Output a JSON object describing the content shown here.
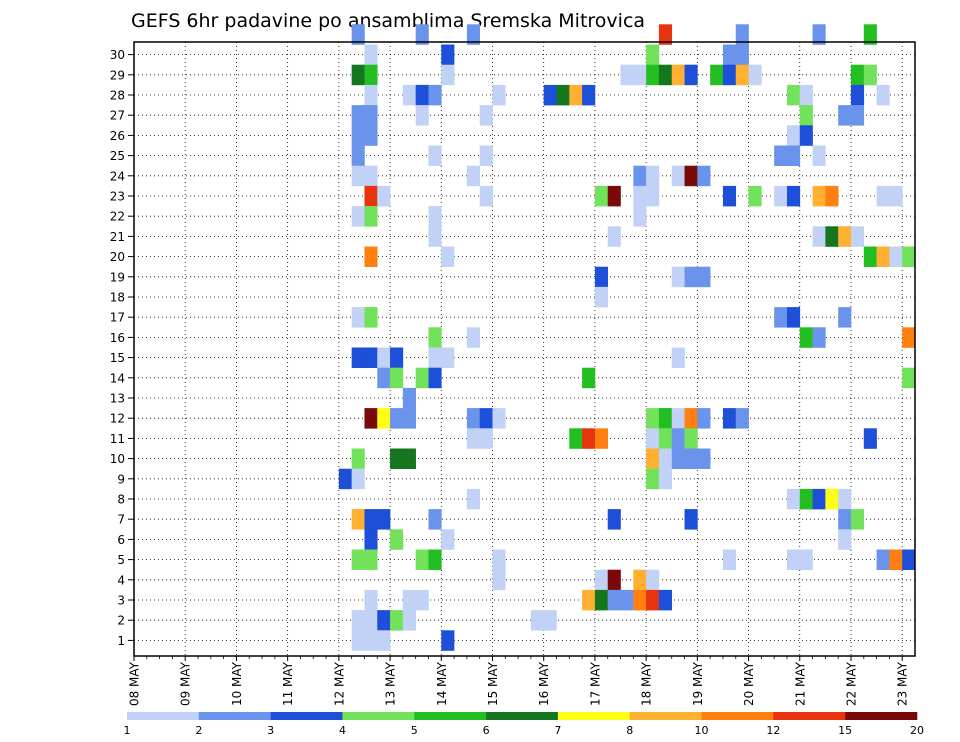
{
  "chart_data": {
    "type": "heatmap",
    "title": "GEFS 6hr padavine po ansamblima Sremska Mitrovica",
    "xlabel": "",
    "ylabel": "",
    "x_tick_labels": [
      "08 MAY",
      "09 MAY",
      "10 MAY",
      "11 MAY",
      "12 MAY",
      "13 MAY",
      "14 MAY",
      "15 MAY",
      "16 MAY",
      "17 MAY",
      "18 MAY",
      "19 MAY",
      "20 MAY",
      "21 MAY",
      "22 MAY",
      "23 MAY"
    ],
    "x_step_hours": 6,
    "x_slots": 61,
    "y_tick_labels": [
      "1",
      "2",
      "3",
      "4",
      "5",
      "6",
      "7",
      "8",
      "9",
      "10",
      "11",
      "12",
      "13",
      "14",
      "15",
      "16",
      "17",
      "18",
      "19",
      "20",
      "21",
      "22",
      "23",
      "24",
      "25",
      "26",
      "27",
      "28",
      "29",
      "30"
    ],
    "grid": true,
    "legend": {
      "position": "bottom",
      "colors": [
        "#c1d2f6",
        "#6a94ec",
        "#1d4fd8",
        "#72e25a",
        "#22be22",
        "#15761f",
        "#ffff14",
        "#ffb030",
        "#ff7f10",
        "#e8330f",
        "#7a0a0a"
      ],
      "labels": [
        "1",
        "2",
        "3",
        "4",
        "5",
        "6",
        "7",
        "8",
        "10",
        "12",
        "15",
        "20"
      ]
    },
    "cells": [
      [
        17,
        30,
        1
      ],
      [
        22,
        30,
        1
      ],
      [
        26,
        30,
        1
      ],
      [
        41,
        30,
        9
      ],
      [
        47,
        30,
        1
      ],
      [
        53,
        30,
        1
      ],
      [
        57,
        30,
        4
      ],
      [
        18,
        29,
        0
      ],
      [
        24,
        29,
        2
      ],
      [
        40,
        29,
        3
      ],
      [
        46,
        29,
        1
      ],
      [
        47,
        29,
        1
      ],
      [
        17,
        28,
        5
      ],
      [
        18,
        28,
        4
      ],
      [
        24,
        28,
        0
      ],
      [
        38,
        28,
        0
      ],
      [
        39,
        28,
        0
      ],
      [
        40,
        28,
        4
      ],
      [
        41,
        28,
        5
      ],
      [
        42,
        28,
        7
      ],
      [
        43,
        28,
        2
      ],
      [
        45,
        28,
        4
      ],
      [
        46,
        28,
        2
      ],
      [
        47,
        28,
        7
      ],
      [
        48,
        28,
        0
      ],
      [
        56,
        28,
        4
      ],
      [
        57,
        28,
        3
      ],
      [
        18,
        27,
        0
      ],
      [
        21,
        27,
        0
      ],
      [
        22,
        27,
        2
      ],
      [
        23,
        27,
        1
      ],
      [
        28,
        27,
        0
      ],
      [
        32,
        27,
        2
      ],
      [
        33,
        27,
        5
      ],
      [
        34,
        27,
        7
      ],
      [
        35,
        27,
        2
      ],
      [
        51,
        27,
        3
      ],
      [
        52,
        27,
        0
      ],
      [
        56,
        27,
        2
      ],
      [
        58,
        27,
        0
      ],
      [
        17,
        26,
        1
      ],
      [
        18,
        26,
        1
      ],
      [
        22,
        26,
        0
      ],
      [
        27,
        26,
        0
      ],
      [
        52,
        26,
        3
      ],
      [
        55,
        26,
        1
      ],
      [
        56,
        26,
        1
      ],
      [
        17,
        25,
        1
      ],
      [
        18,
        25,
        1
      ],
      [
        51,
        25,
        0
      ],
      [
        52,
        25,
        2
      ],
      [
        17,
        24,
        1
      ],
      [
        23,
        24,
        0
      ],
      [
        27,
        24,
        0
      ],
      [
        50,
        24,
        1
      ],
      [
        51,
        24,
        1
      ],
      [
        53,
        24,
        0
      ],
      [
        17,
        23,
        0
      ],
      [
        18,
        23,
        0
      ],
      [
        26,
        23,
        0
      ],
      [
        39,
        23,
        1
      ],
      [
        40,
        23,
        0
      ],
      [
        42,
        23,
        0
      ],
      [
        43,
        23,
        10
      ],
      [
        44,
        23,
        1
      ],
      [
        18,
        22,
        9
      ],
      [
        19,
        22,
        0
      ],
      [
        27,
        22,
        0
      ],
      [
        36,
        22,
        3
      ],
      [
        37,
        22,
        10
      ],
      [
        39,
        22,
        0
      ],
      [
        40,
        22,
        0
      ],
      [
        46,
        22,
        2
      ],
      [
        48,
        22,
        3
      ],
      [
        50,
        22,
        0
      ],
      [
        51,
        22,
        2
      ],
      [
        53,
        22,
        7
      ],
      [
        54,
        22,
        8
      ],
      [
        58,
        22,
        0
      ],
      [
        59,
        22,
        0
      ],
      [
        17,
        21,
        0
      ],
      [
        18,
        21,
        3
      ],
      [
        23,
        21,
        0
      ],
      [
        39,
        21,
        0
      ],
      [
        23,
        20,
        0
      ],
      [
        37,
        20,
        0
      ],
      [
        53,
        20,
        0
      ],
      [
        54,
        20,
        5
      ],
      [
        55,
        20,
        7
      ],
      [
        56,
        20,
        0
      ],
      [
        24,
        19,
        0
      ],
      [
        18,
        19,
        8
      ],
      [
        57,
        19,
        4
      ],
      [
        58,
        19,
        7
      ],
      [
        59,
        19,
        0
      ],
      [
        60,
        19,
        3
      ],
      [
        36,
        18,
        2
      ],
      [
        42,
        18,
        0
      ],
      [
        43,
        18,
        1
      ],
      [
        44,
        18,
        1
      ],
      [
        36,
        17,
        0
      ],
      [
        17,
        16,
        0
      ],
      [
        18,
        16,
        3
      ],
      [
        50,
        16,
        1
      ],
      [
        51,
        16,
        2
      ],
      [
        55,
        16,
        1
      ],
      [
        23,
        15,
        3
      ],
      [
        26,
        15,
        0
      ],
      [
        52,
        15,
        4
      ],
      [
        53,
        15,
        1
      ],
      [
        60,
        15,
        8
      ],
      [
        17,
        14,
        2
      ],
      [
        18,
        14,
        2
      ],
      [
        19,
        14,
        0
      ],
      [
        20,
        14,
        2
      ],
      [
        23,
        14,
        0
      ],
      [
        24,
        14,
        0
      ],
      [
        42,
        14,
        0
      ],
      [
        19,
        13,
        1
      ],
      [
        20,
        13,
        3
      ],
      [
        22,
        13,
        3
      ],
      [
        23,
        13,
        2
      ],
      [
        35,
        13,
        4
      ],
      [
        60,
        13,
        3
      ],
      [
        21,
        12,
        1
      ],
      [
        18,
        11,
        10
      ],
      [
        19,
        11,
        6
      ],
      [
        20,
        11,
        1
      ],
      [
        21,
        11,
        1
      ],
      [
        26,
        11,
        1
      ],
      [
        27,
        11,
        2
      ],
      [
        28,
        11,
        0
      ],
      [
        40,
        11,
        3
      ],
      [
        41,
        11,
        4
      ],
      [
        42,
        11,
        0
      ],
      [
        43,
        11,
        8
      ],
      [
        44,
        11,
        1
      ],
      [
        46,
        11,
        2
      ],
      [
        47,
        11,
        1
      ],
      [
        26,
        10,
        0
      ],
      [
        27,
        10,
        0
      ],
      [
        34,
        10,
        4
      ],
      [
        35,
        10,
        9
      ],
      [
        36,
        10,
        8
      ],
      [
        40,
        10,
        0
      ],
      [
        41,
        10,
        3
      ],
      [
        42,
        10,
        1
      ],
      [
        43,
        10,
        3
      ],
      [
        57,
        10,
        2
      ],
      [
        17,
        9,
        3
      ],
      [
        20,
        9,
        5
      ],
      [
        21,
        9,
        5
      ],
      [
        40,
        9,
        7
      ],
      [
        41,
        9,
        0
      ],
      [
        42,
        9,
        1
      ],
      [
        43,
        9,
        1
      ],
      [
        44,
        9,
        1
      ],
      [
        16,
        8,
        2
      ],
      [
        17,
        8,
        0
      ],
      [
        40,
        8,
        3
      ],
      [
        41,
        8,
        0
      ],
      [
        26,
        7,
        0
      ],
      [
        51,
        7,
        0
      ],
      [
        52,
        7,
        4
      ],
      [
        53,
        7,
        2
      ],
      [
        54,
        7,
        6
      ],
      [
        55,
        7,
        0
      ],
      [
        17,
        6,
        7
      ],
      [
        18,
        6,
        2
      ],
      [
        19,
        6,
        2
      ],
      [
        23,
        6,
        1
      ],
      [
        37,
        6,
        2
      ],
      [
        43,
        6,
        2
      ],
      [
        55,
        6,
        1
      ],
      [
        56,
        6,
        3
      ],
      [
        18,
        5,
        2
      ],
      [
        20,
        5,
        3
      ],
      [
        24,
        5,
        0
      ],
      [
        55,
        5,
        0
      ],
      [
        17,
        4,
        3
      ],
      [
        18,
        4,
        3
      ],
      [
        22,
        4,
        3
      ],
      [
        23,
        4,
        4
      ],
      [
        28,
        4,
        0
      ],
      [
        46,
        4,
        0
      ],
      [
        51,
        4,
        0
      ],
      [
        52,
        4,
        0
      ],
      [
        58,
        4,
        1
      ],
      [
        59,
        4,
        8
      ],
      [
        60,
        4,
        2
      ],
      [
        28,
        3,
        0
      ],
      [
        36,
        3,
        0
      ],
      [
        37,
        3,
        10
      ],
      [
        39,
        3,
        7
      ],
      [
        40,
        3,
        0
      ],
      [
        18,
        2,
        0
      ],
      [
        21,
        2,
        0
      ],
      [
        22,
        2,
        0
      ],
      [
        35,
        2,
        7
      ],
      [
        36,
        2,
        5
      ],
      [
        37,
        2,
        1
      ],
      [
        38,
        2,
        1
      ],
      [
        39,
        2,
        8
      ],
      [
        40,
        2,
        9
      ],
      [
        41,
        2,
        2
      ],
      [
        17,
        1,
        0
      ],
      [
        18,
        1,
        0
      ],
      [
        19,
        1,
        2
      ],
      [
        20,
        1,
        3
      ],
      [
        21,
        1,
        0
      ],
      [
        31,
        1,
        0
      ],
      [
        32,
        1,
        0
      ],
      [
        17,
        0,
        0
      ],
      [
        18,
        0,
        0
      ],
      [
        19,
        0,
        0
      ],
      [
        24,
        0,
        2
      ]
    ]
  }
}
